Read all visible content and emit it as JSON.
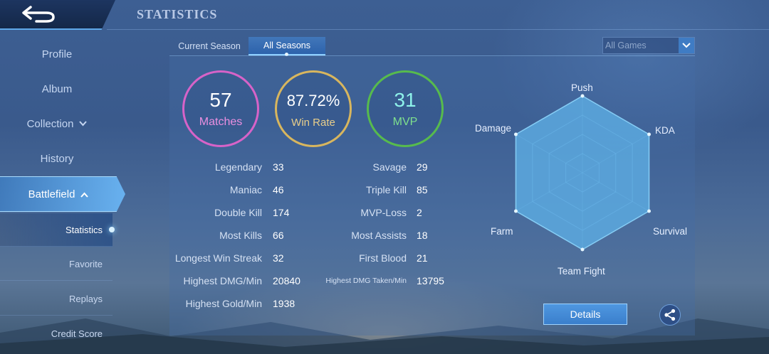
{
  "header": {
    "title": "STATISTICS"
  },
  "sidebar": {
    "items": [
      {
        "label": "Profile"
      },
      {
        "label": "Album"
      },
      {
        "label": "Collection"
      },
      {
        "label": "History"
      },
      {
        "label": "Battlefield"
      }
    ],
    "sub_items": [
      {
        "label": "Statistics"
      },
      {
        "label": "Favorite"
      },
      {
        "label": "Replays"
      },
      {
        "label": "Credit Score"
      }
    ]
  },
  "tabs": [
    {
      "label": "Current Season"
    },
    {
      "label": "All Seasons"
    }
  ],
  "filter": {
    "selected": "All Games"
  },
  "summary": {
    "matches": {
      "value": "57",
      "label": "Matches"
    },
    "win_rate": {
      "value": "87.72%",
      "label": "Win Rate"
    },
    "mvp": {
      "value": "31",
      "label": "MVP"
    }
  },
  "stats_left": [
    {
      "label": "Legendary",
      "value": "33"
    },
    {
      "label": "Maniac",
      "value": "46"
    },
    {
      "label": "Double Kill",
      "value": "174"
    },
    {
      "label": "Most Kills",
      "value": "66"
    },
    {
      "label": "Longest Win Streak",
      "value": "32"
    },
    {
      "label": "Highest DMG/Min",
      "value": "20840"
    },
    {
      "label": "Highest Gold/Min",
      "value": "1938"
    }
  ],
  "stats_right": [
    {
      "label": "Savage",
      "value": "29"
    },
    {
      "label": "Triple Kill",
      "value": "85"
    },
    {
      "label": "MVP-Loss",
      "value": "2"
    },
    {
      "label": "Most Assists",
      "value": "18"
    },
    {
      "label": "First Blood",
      "value": "21"
    },
    {
      "label": "Highest DMG Taken/Min",
      "value": "13795"
    }
  ],
  "radar": {
    "axes": [
      "Push",
      "KDA",
      "Survival",
      "Team Fight",
      "Farm",
      "Damage"
    ],
    "values": [
      1.0,
      1.0,
      1.0,
      1.0,
      1.0,
      1.0
    ],
    "fill_color": "#5fb0e6"
  },
  "actions": {
    "details_label": "Details"
  },
  "icons": {
    "back": "back-arrow-icon",
    "share": "share-icon",
    "dropdown": "chevron-down-icon"
  }
}
